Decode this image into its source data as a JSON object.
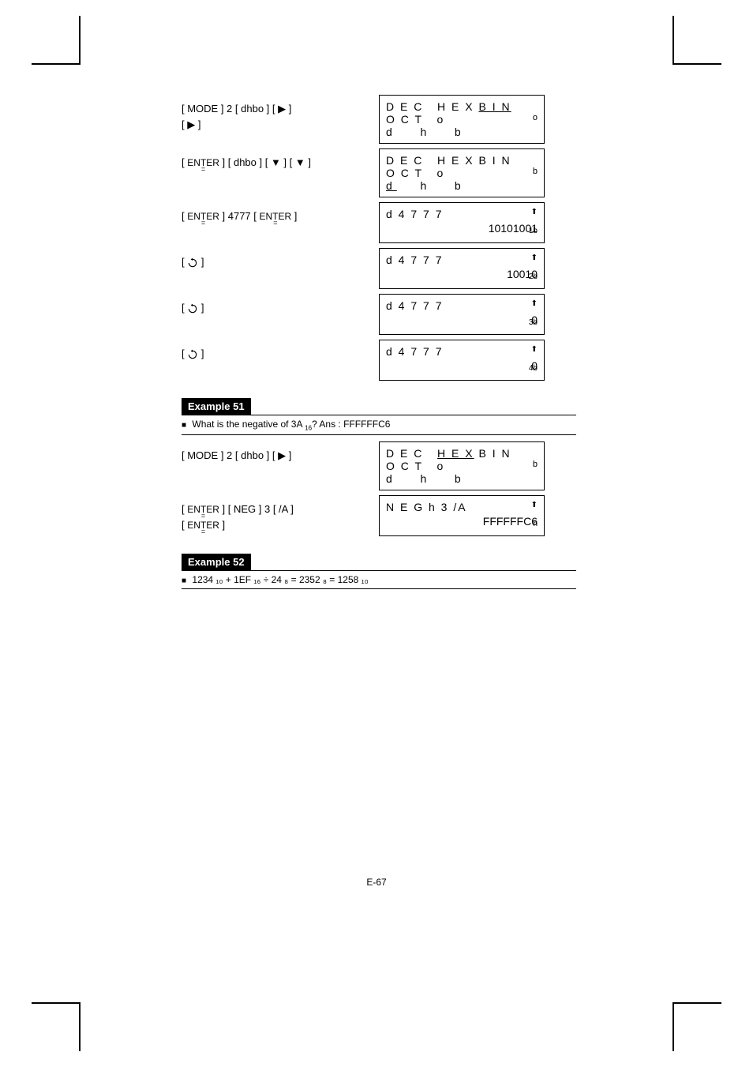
{
  "rows": [
    {
      "keys_html": "[ MODE ] 2 [ dhbo ] [ ▶ ]<br>[ ▶ ]",
      "lcd": {
        "line1_pre": "D E C   H E X ",
        "line1_ul": "B I N",
        "line2": "O C T   o",
        "line3": "d   h   b",
        "mode_ind": "o"
      }
    },
    {
      "keys_html": "[ <span class='entereq'><span class='et-top'>ENTER</span><span class='et-eq'>=</span></span> ] [ dhbo ] [ ▼ ] [ ▼ ]",
      "lcd": {
        "line1_pre": "D E C   H E X B I N",
        "line2": "O C T   o",
        "line3_ul_first": "d",
        "line3_rest": "   h   b",
        "mode_ind": "b"
      }
    },
    {
      "keys_html": "[ <span class='entereq'><span class='et-top'>ENTER</span><span class='et-eq'>=</span></span> ] 4777 [ <span class='entereq'><span class='et-top'>ENTER</span><span class='et-eq'>=</span></span> ]",
      "lcd": {
        "entry": "d 4 7 7 7",
        "up": "⬆",
        "small": "1b",
        "result": "10101001"
      }
    },
    {
      "keys_html": "[ <svg class='recycle' viewBox='0 0 24 24'><path d='M12 4 A8 8 0 1 1 4 12' fill='none' stroke='#000' stroke-width='2'/><path d='M12 1 L12 7 L8 4 Z' fill='#000'/></svg> ]",
      "lcd": {
        "entry": "d 4 7 7 7",
        "up": "⬆",
        "small": "2b",
        "result": "10010"
      }
    },
    {
      "keys_html": "[ <svg class='recycle' viewBox='0 0 24 24'><path d='M12 4 A8 8 0 1 1 4 12' fill='none' stroke='#000' stroke-width='2'/><path d='M12 1 L12 7 L8 4 Z' fill='#000'/></svg> ]",
      "lcd": {
        "entry": "d 4 7 7 7",
        "up": "⬆",
        "small": "3b",
        "result": "0"
      }
    },
    {
      "keys_html": "[ <svg class='recycle' viewBox='0 0 24 24'><path d='M12 4 A8 8 0 1 1 4 12' fill='none' stroke='#000' stroke-width='2'/><path d='M12 1 L12 7 L8 4 Z' fill='#000'/></svg> ]",
      "lcd": {
        "entry": "d 4 7 7 7",
        "up": "⬆",
        "small": "4b",
        "result": "0"
      }
    }
  ],
  "example51": {
    "title": "Example 51",
    "question_pre": "What is the negative of 3A ",
    "question_sub": "16",
    "question_post": "? Ans : FFFFFFC6",
    "row1": {
      "keys_html": "[ MODE ] 2 [ dhbo ] [ ▶ ]",
      "lcd": {
        "line1_pre": "D E C   ",
        "line1_ul": "H E X",
        "line1_post": " B I N",
        "line2": "O C T   o",
        "line3": "d   h   b",
        "mode_ind": "b"
      }
    },
    "row2": {
      "keys_html": "[ <span class='entereq'><span class='et-top'>ENTER</span><span class='et-eq'>=</span></span> ] [ NEG ] 3 [ /A ]<br>[ <span class='entereq'><span class='et-top'>ENTER</span><span class='et-eq'>=</span></span> ]",
      "lcd": {
        "entry": "N E G  h 3 /A",
        "up": "⬆",
        "small": "h",
        "result": "FFFFFFC6"
      }
    }
  },
  "example52": {
    "title": "Example 52",
    "equation": "1234 ₁₀ + 1EF ₁₆ ÷ 24 ₈  = 2352 ₈ = 1258 ₁₀"
  },
  "pagenum": "E-67"
}
